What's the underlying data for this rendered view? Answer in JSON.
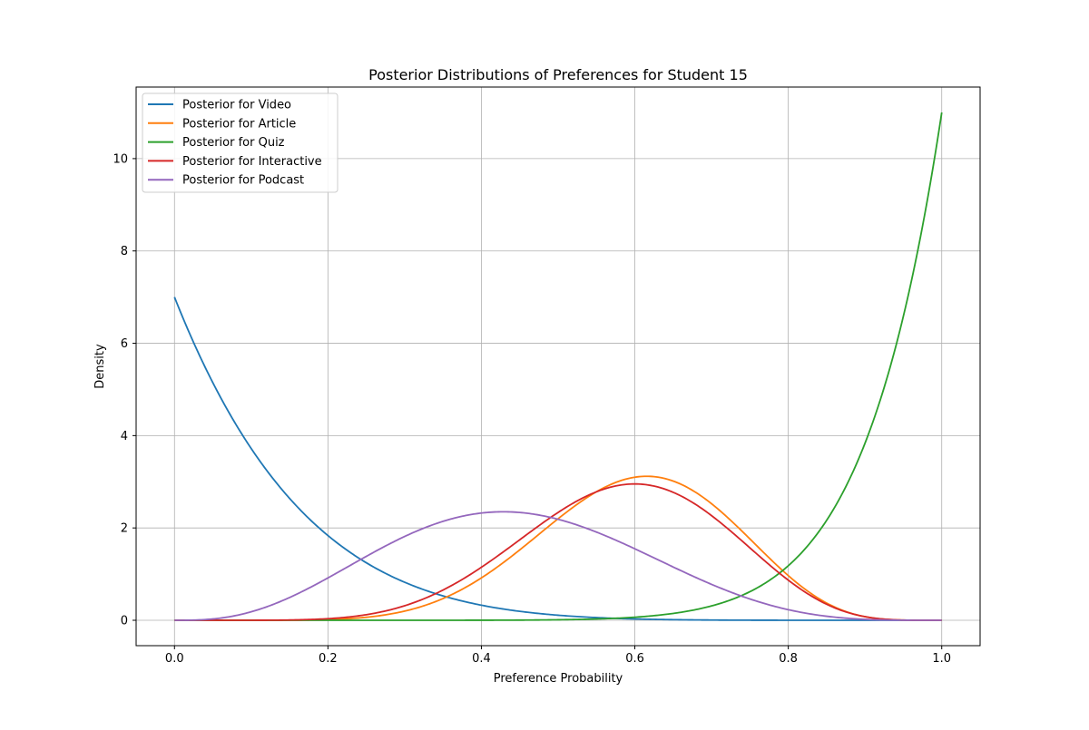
{
  "chart_data": {
    "type": "line",
    "title": "Posterior Distributions of Preferences for Student 15",
    "xlabel": "Preference Probability",
    "ylabel": "Density",
    "xlim": [
      -0.05,
      1.05
    ],
    "ylim": [
      -0.55,
      11.55
    ],
    "xticks": [
      0.0,
      0.2,
      0.4,
      0.6,
      0.8,
      1.0
    ],
    "xtick_labels": [
      "0.0",
      "0.2",
      "0.4",
      "0.6",
      "0.8",
      "1.0"
    ],
    "yticks": [
      0,
      2,
      4,
      6,
      8,
      10
    ],
    "ytick_labels": [
      "0",
      "2",
      "4",
      "6",
      "8",
      "10"
    ],
    "grid": true,
    "legend_position": "top-left",
    "series": [
      {
        "name": "Posterior for Video",
        "color": "#1f77b4",
        "distribution": "beta",
        "alpha": 1,
        "beta": 7
      },
      {
        "name": "Posterior for Article",
        "color": "#ff7f0e",
        "distribution": "beta",
        "alpha": 9,
        "beta": 6
      },
      {
        "name": "Posterior for Quiz",
        "color": "#2ca02c",
        "distribution": "beta",
        "alpha": 11,
        "beta": 1
      },
      {
        "name": "Posterior for Interactive",
        "color": "#d62728",
        "distribution": "beta",
        "alpha": 8,
        "beta": 5.67
      },
      {
        "name": "Posterior for Podcast",
        "color": "#9467bd",
        "distribution": "beta",
        "alpha": 4,
        "beta": 5
      }
    ]
  }
}
